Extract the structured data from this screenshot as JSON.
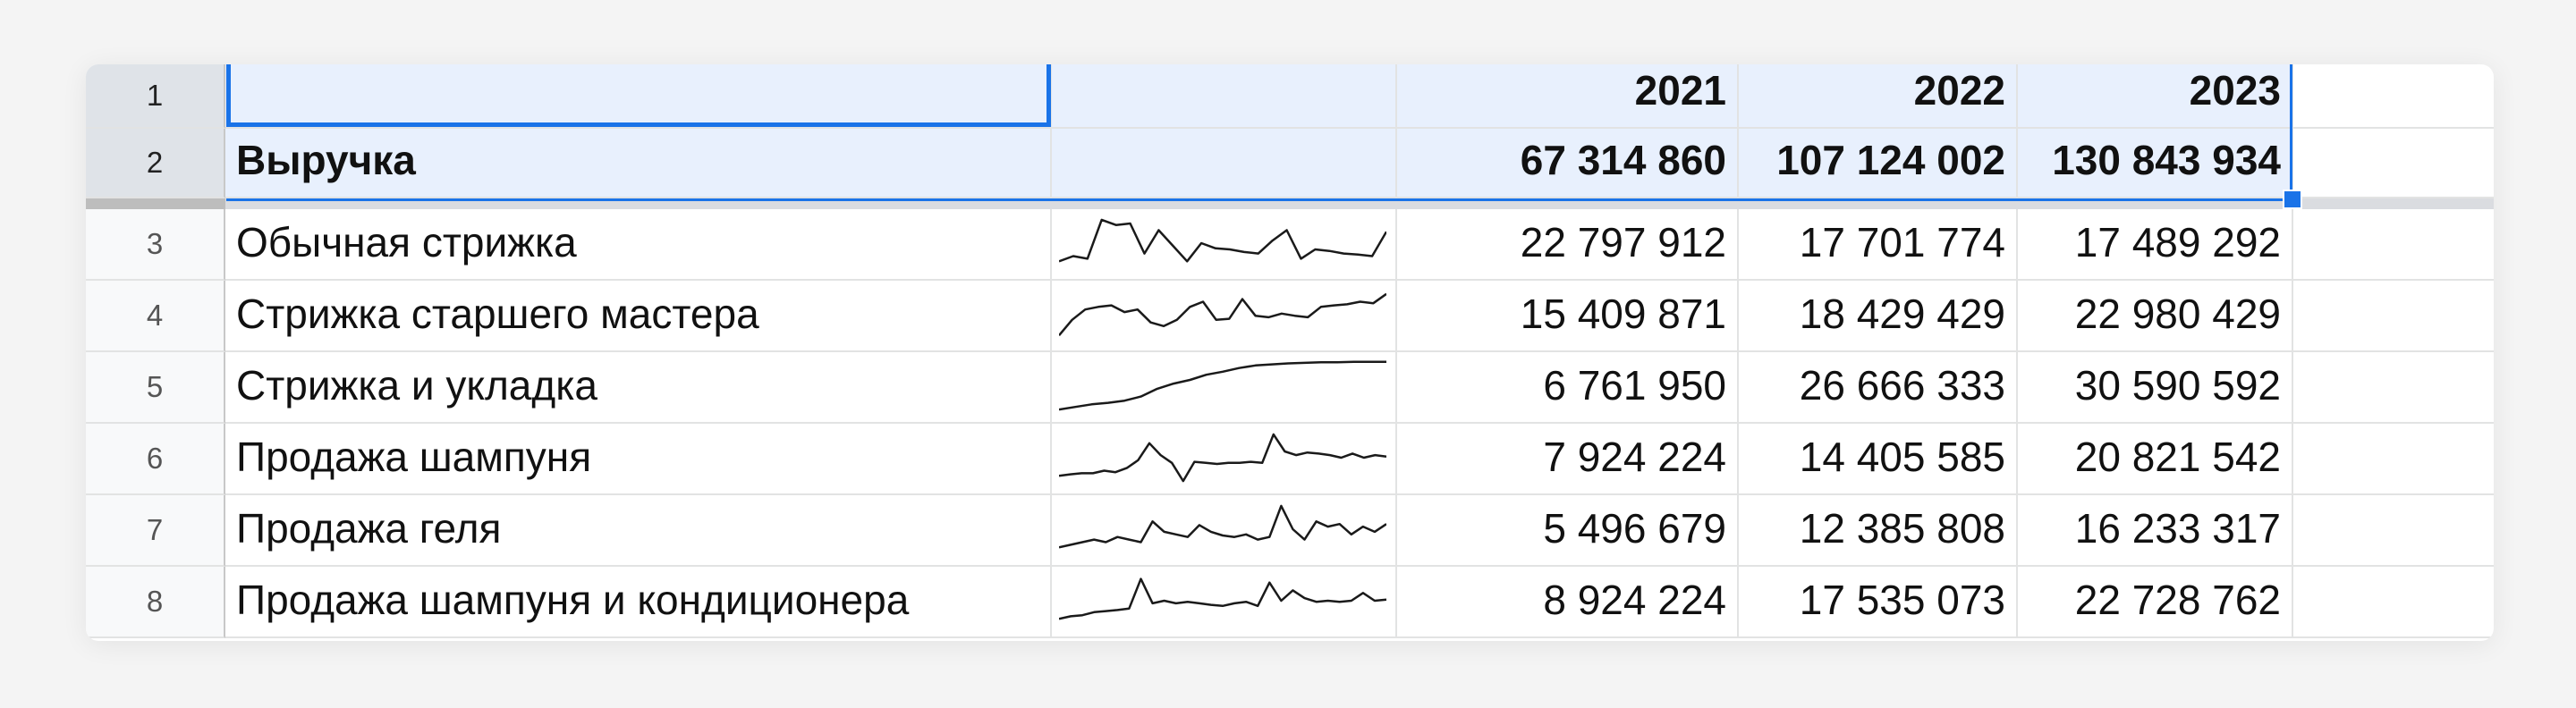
{
  "header_row": {
    "number": "1",
    "years": [
      "2021",
      "2022",
      "2023"
    ]
  },
  "total_row": {
    "number": "2",
    "label": "Выручка",
    "values": [
      "67 314 860",
      "107 124 002",
      "130 843 934"
    ]
  },
  "data_rows": [
    {
      "number": "3",
      "label": "Обычная стрижка",
      "values": [
        "22 797 912",
        "17 701 774",
        "17 489 292"
      ],
      "spark": [
        0.15,
        0.25,
        0.2,
        0.95,
        0.85,
        0.88,
        0.3,
        0.75,
        0.45,
        0.15,
        0.5,
        0.4,
        0.38,
        0.33,
        0.3,
        0.55,
        0.75,
        0.2,
        0.38,
        0.35,
        0.3,
        0.28,
        0.25,
        0.72
      ]
    },
    {
      "number": "4",
      "label": "Стрижка старшего мастера",
      "values": [
        "15 409 871",
        "18 429 429",
        "22 980 429"
      ],
      "spark": [
        0.1,
        0.4,
        0.6,
        0.65,
        0.68,
        0.55,
        0.6,
        0.35,
        0.28,
        0.4,
        0.65,
        0.75,
        0.4,
        0.42,
        0.8,
        0.48,
        0.45,
        0.52,
        0.48,
        0.45,
        0.65,
        0.68,
        0.7,
        0.75,
        0.72,
        0.9
      ]
    },
    {
      "number": "5",
      "label": "Стрижка и укладка",
      "values": [
        "6 761 950",
        "26 666 333",
        "30 590 592"
      ],
      "spark": [
        0.05,
        0.1,
        0.15,
        0.18,
        0.22,
        0.3,
        0.45,
        0.55,
        0.62,
        0.72,
        0.78,
        0.85,
        0.9,
        0.92,
        0.94,
        0.95,
        0.96,
        0.96,
        0.97,
        0.97,
        0.97
      ]
    },
    {
      "number": "6",
      "label": "Продажа шампуня",
      "values": [
        "7 924 224",
        "14 405 585",
        "20 821 542"
      ],
      "spark": [
        0.15,
        0.18,
        0.2,
        0.2,
        0.25,
        0.22,
        0.3,
        0.45,
        0.78,
        0.55,
        0.4,
        0.05,
        0.42,
        0.4,
        0.38,
        0.4,
        0.4,
        0.42,
        0.4,
        0.95,
        0.62,
        0.55,
        0.6,
        0.58,
        0.55,
        0.5,
        0.58,
        0.5,
        0.55,
        0.52
      ]
    },
    {
      "number": "7",
      "label": "Продажа геля",
      "values": [
        "5 496 679",
        "12 385 808",
        "16 233 317"
      ],
      "spark": [
        0.15,
        0.2,
        0.25,
        0.3,
        0.25,
        0.35,
        0.3,
        0.25,
        0.65,
        0.45,
        0.4,
        0.35,
        0.58,
        0.45,
        0.38,
        0.35,
        0.4,
        0.3,
        0.35,
        0.95,
        0.5,
        0.3,
        0.65,
        0.55,
        0.6,
        0.4,
        0.55,
        0.45,
        0.6
      ]
    },
    {
      "number": "8",
      "label": "Продажа шампуня и кондиционера",
      "values": [
        "8 924 224",
        "17 535 073",
        "22 728 762"
      ],
      "spark": [
        0.15,
        0.2,
        0.22,
        0.28,
        0.3,
        0.32,
        0.35,
        0.92,
        0.45,
        0.5,
        0.45,
        0.48,
        0.45,
        0.42,
        0.4,
        0.45,
        0.48,
        0.4,
        0.85,
        0.5,
        0.7,
        0.55,
        0.48,
        0.5,
        0.48,
        0.5,
        0.65,
        0.5,
        0.52
      ]
    }
  ],
  "colors": {
    "selection": "#1a73e8",
    "highlight": "#e8f0fd",
    "grid": "#e2e3e3",
    "sparkline": "#1a1a1a"
  }
}
